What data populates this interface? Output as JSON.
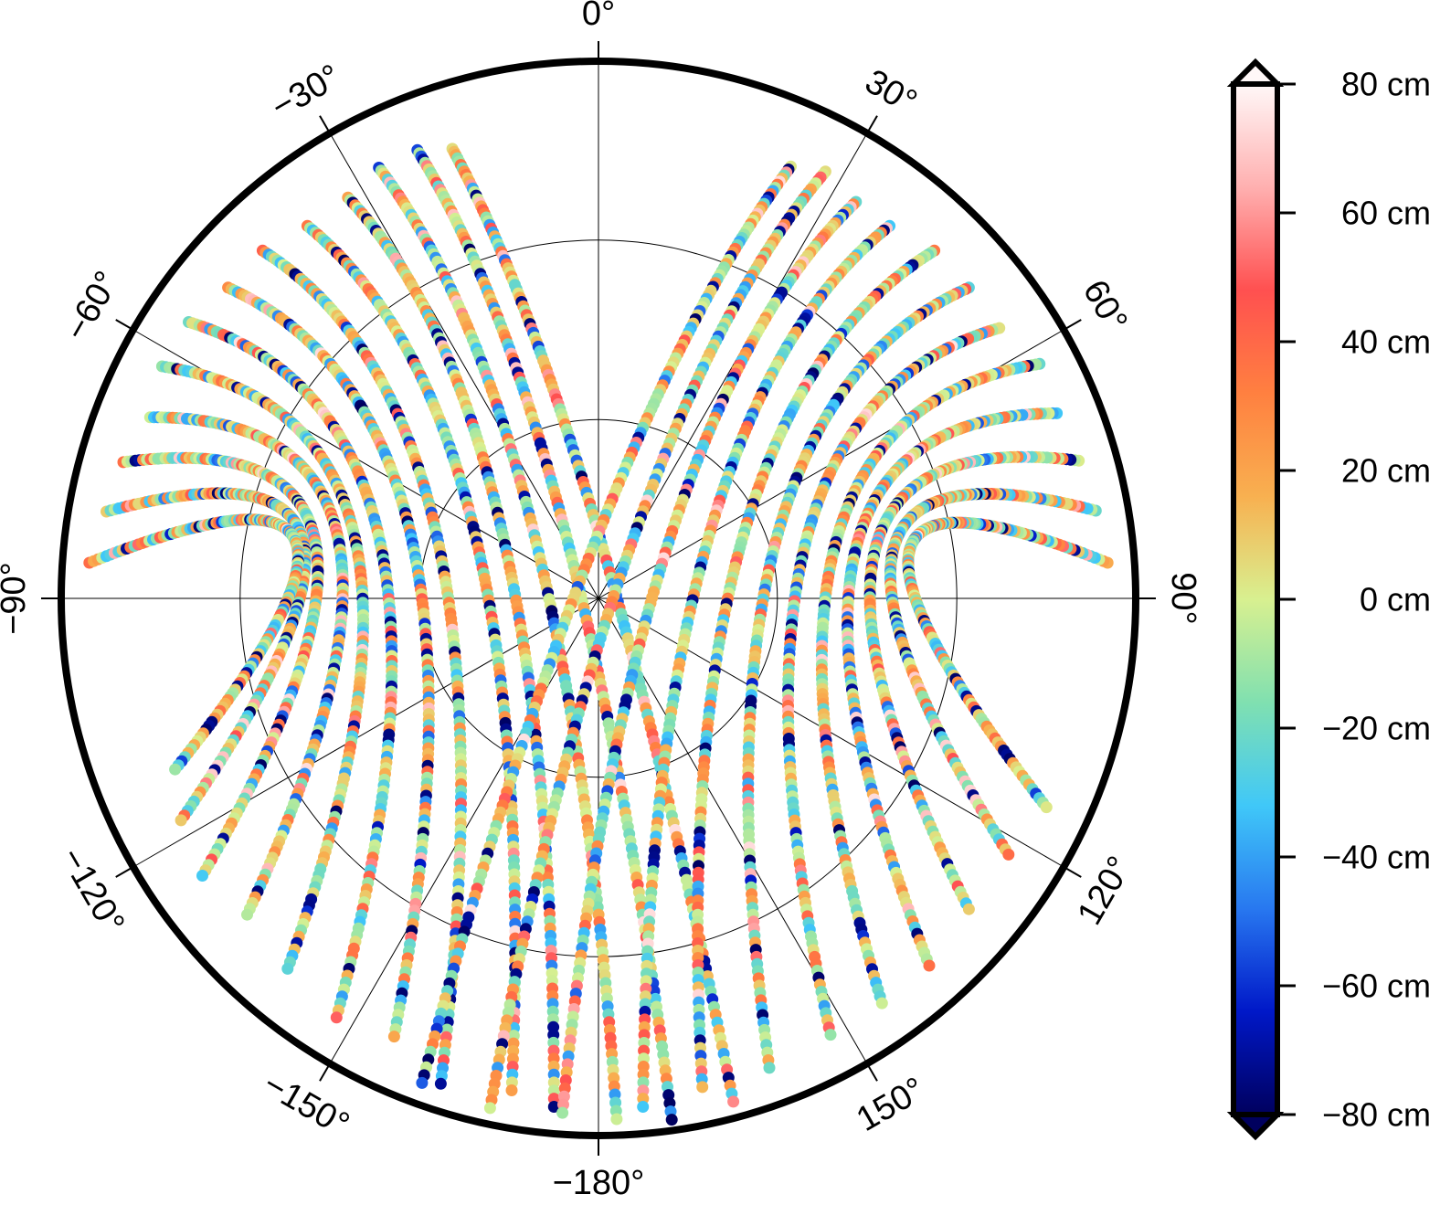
{
  "chart_data": {
    "type": "scatter",
    "projection": "polar",
    "title": "",
    "theta_ticks": [
      {
        "deg": 0,
        "label": "0°"
      },
      {
        "deg": 30,
        "label": "30°"
      },
      {
        "deg": 60,
        "label": "60°"
      },
      {
        "deg": 90,
        "label": "90°"
      },
      {
        "deg": 120,
        "label": "120°"
      },
      {
        "deg": 150,
        "label": "150°"
      },
      {
        "deg": 180,
        "label": "−180°"
      },
      {
        "deg": -150,
        "label": "−150°"
      },
      {
        "deg": -120,
        "label": "−120°"
      },
      {
        "deg": -90,
        "label": "−90°"
      },
      {
        "deg": -60,
        "label": "−60°"
      },
      {
        "deg": -30,
        "label": "−30°"
      }
    ],
    "radial_gridlines": [
      0.333,
      0.667
    ],
    "colorbar": {
      "range": [
        -80,
        80
      ],
      "unit": "cm",
      "extend": "both",
      "ticks": [
        {
          "value": 80,
          "label": "80 cm"
        },
        {
          "value": 60,
          "label": "60 cm"
        },
        {
          "value": 40,
          "label": "40 cm"
        },
        {
          "value": 20,
          "label": "20 cm"
        },
        {
          "value": 0,
          "label": "0 cm"
        },
        {
          "value": -20,
          "label": "−20 cm"
        },
        {
          "value": -40,
          "label": "−40 cm"
        },
        {
          "value": -60,
          "label": "−60 cm"
        },
        {
          "value": -80,
          "label": "−80 cm"
        }
      ],
      "colormap": [
        "#00005e",
        "#0018c8",
        "#2878f0",
        "#40c8f8",
        "#80e0b0",
        "#d8f090",
        "#f8b050",
        "#ff8040",
        "#ff5050",
        "#ffb0b0",
        "#fff8f8"
      ]
    },
    "tracks": [
      {
        "start_deg": -18,
        "start_r": 0.88,
        "end_deg": 165,
        "end_r": 0.97
      },
      {
        "start_deg": -22,
        "start_r": 0.9,
        "end_deg": 172,
        "end_r": 0.98
      },
      {
        "start_deg": -27,
        "start_r": 0.9,
        "end_deg": 178,
        "end_r": 0.97
      },
      {
        "start_deg": -32,
        "start_r": 0.88,
        "end_deg": -175,
        "end_r": 0.95
      },
      {
        "start_deg": -38,
        "start_r": 0.88,
        "end_deg": -170,
        "end_r": 0.93
      },
      {
        "start_deg": -44,
        "start_r": 0.9,
        "end_deg": -162,
        "end_r": 0.95
      },
      {
        "start_deg": -50,
        "start_r": 0.9,
        "end_deg": -155,
        "end_r": 0.9
      },
      {
        "start_deg": -56,
        "start_r": 0.92,
        "end_deg": -148,
        "end_r": 0.92
      },
      {
        "start_deg": -62,
        "start_r": 0.92,
        "end_deg": -140,
        "end_r": 0.9
      },
      {
        "start_deg": -68,
        "start_r": 0.9,
        "end_deg": -132,
        "end_r": 0.88
      },
      {
        "start_deg": -74,
        "start_r": 0.92,
        "end_deg": -125,
        "end_r": 0.9
      },
      {
        "start_deg": -80,
        "start_r": 0.93,
        "end_deg": -118,
        "end_r": 0.88
      },
      {
        "start_deg": -86,
        "start_r": 0.95,
        "end_deg": -112,
        "end_r": 0.85
      },
      {
        "start_deg": 24,
        "start_r": 0.88,
        "end_deg": -160,
        "end_r": 0.96
      },
      {
        "start_deg": 28,
        "start_r": 0.9,
        "end_deg": -168,
        "end_r": 0.97
      },
      {
        "start_deg": 33,
        "start_r": 0.88,
        "end_deg": -176,
        "end_r": 0.96
      },
      {
        "start_deg": 38,
        "start_r": 0.88,
        "end_deg": 175,
        "end_r": 0.95
      },
      {
        "start_deg": 44,
        "start_r": 0.9,
        "end_deg": 168,
        "end_r": 0.93
      },
      {
        "start_deg": 50,
        "start_r": 0.9,
        "end_deg": 160,
        "end_r": 0.93
      },
      {
        "start_deg": 56,
        "start_r": 0.9,
        "end_deg": 152,
        "end_r": 0.92
      },
      {
        "start_deg": 62,
        "start_r": 0.93,
        "end_deg": 145,
        "end_r": 0.92
      },
      {
        "start_deg": 68,
        "start_r": 0.92,
        "end_deg": 138,
        "end_r": 0.92
      },
      {
        "start_deg": 74,
        "start_r": 0.93,
        "end_deg": 130,
        "end_r": 0.9
      },
      {
        "start_deg": 80,
        "start_r": 0.94,
        "end_deg": 122,
        "end_r": 0.9
      },
      {
        "start_deg": 86,
        "start_r": 0.95,
        "end_deg": 115,
        "end_r": 0.92
      }
    ]
  }
}
